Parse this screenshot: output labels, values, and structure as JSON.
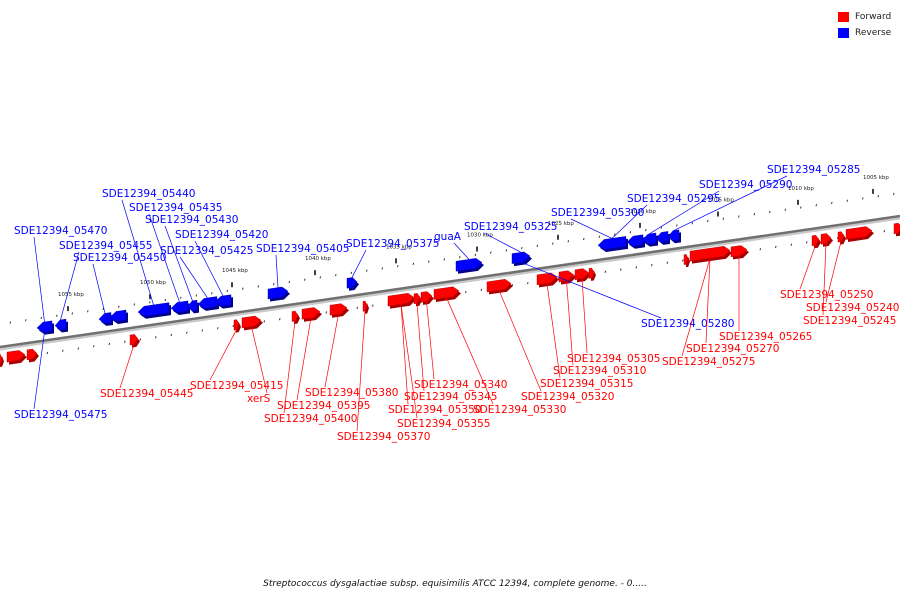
{
  "legend": {
    "forward_label": "Forward",
    "reverse_label": "Reverse",
    "forward_color": "#ff0000",
    "reverse_color": "#0000ff"
  },
  "caption": "Streptococcus dysgalactiae subsp. equisimilis ATCC 12394, complete genome. - 0.....",
  "axis": {
    "ticks": [
      "1005 kbp",
      "1010 kbp",
      "1015 kbp",
      "1020 kbp",
      "1025 kbp",
      "1030 kbp",
      "1035 kbp",
      "1040 kbp",
      "1045 kbp",
      "1050 kbp",
      "1055 kbp"
    ]
  },
  "genes": {
    "forward": [
      "SDE12394_05240",
      "SDE12394_05245",
      "SDE12394_05250",
      "SDE12394_05265",
      "SDE12394_05270",
      "SDE12394_05275",
      "SDE12394_05305",
      "SDE12394_05310",
      "SDE12394_05315",
      "SDE12394_05320",
      "SDE12394_05330",
      "SDE12394_05340",
      "SDE12394_05345",
      "SDE12394_05350",
      "SDE12394_05355",
      "SDE12394_05370",
      "SDE12394_05380",
      "SDE12394_05395",
      "SDE12394_05400",
      "xerS",
      "SDE12394_05415",
      "SDE12394_05445"
    ],
    "reverse": [
      "SDE12394_05285",
      "SDE12394_05290",
      "SDE12394_05295",
      "SDE12394_05300",
      "SDE12394_05280",
      "SDE12394_05325",
      "guaA",
      "SDE12394_05375",
      "SDE12394_05405",
      "SDE12394_05440",
      "SDE12394_05435",
      "SDE12394_05430",
      "SDE12394_05420",
      "SDE12394_05425",
      "SDE12394_05470",
      "SDE12394_05455",
      "SDE12394_05450",
      "SDE12394_05475"
    ]
  }
}
